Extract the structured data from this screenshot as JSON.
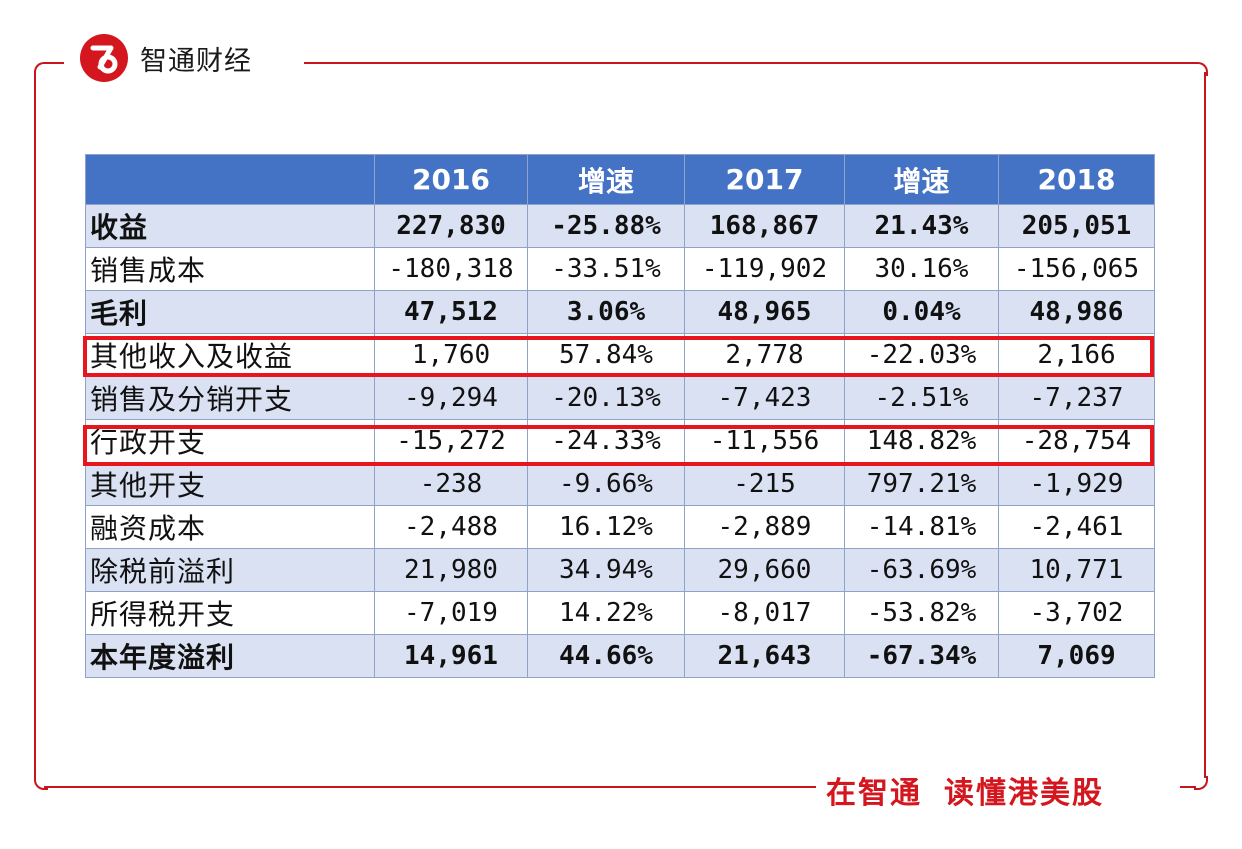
{
  "brand": {
    "name": "智通财经",
    "slogan_part1": "在智通",
    "slogan_part2": "读懂港美股"
  },
  "colors": {
    "brand_red": "#d4161e",
    "header_blue": "#4472c4",
    "band_blue": "#d9e1f2",
    "highlight_red": "#e8141e"
  },
  "chart_data": {
    "type": "table",
    "columns": [
      "",
      "2016",
      "增速",
      "2017",
      "增速",
      "2018"
    ],
    "rows": [
      {
        "label": "收益",
        "bold": true,
        "values": [
          "227,830",
          "-25.88%",
          "168,867",
          "21.43%",
          "205,051"
        ]
      },
      {
        "label": "销售成本",
        "bold": false,
        "values": [
          "-180,318",
          "-33.51%",
          "-119,902",
          "30.16%",
          "-156,065"
        ]
      },
      {
        "label": "毛利",
        "bold": true,
        "values": [
          "47,512",
          "3.06%",
          "48,965",
          "0.04%",
          "48,986"
        ]
      },
      {
        "label": "其他收入及收益",
        "bold": false,
        "highlighted": true,
        "values": [
          "1,760",
          "57.84%",
          "2,778",
          "-22.03%",
          "2,166"
        ]
      },
      {
        "label": "销售及分销开支",
        "bold": false,
        "values": [
          "-9,294",
          "-20.13%",
          "-7,423",
          "-2.51%",
          "-7,237"
        ]
      },
      {
        "label": "行政开支",
        "bold": false,
        "highlighted": true,
        "values": [
          "-15,272",
          "-24.33%",
          "-11,556",
          "148.82%",
          "-28,754"
        ]
      },
      {
        "label": "其他开支",
        "bold": false,
        "values": [
          "-238",
          "-9.66%",
          "-215",
          "797.21%",
          "-1,929"
        ]
      },
      {
        "label": "融资成本",
        "bold": false,
        "values": [
          "-2,488",
          "16.12%",
          "-2,889",
          "-14.81%",
          "-2,461"
        ]
      },
      {
        "label": "除税前溢利",
        "bold": false,
        "values": [
          "21,980",
          "34.94%",
          "29,660",
          "-63.69%",
          "10,771"
        ]
      },
      {
        "label": "所得税开支",
        "bold": false,
        "values": [
          "-7,019",
          "14.22%",
          "-8,017",
          "-53.82%",
          "-3,702"
        ]
      },
      {
        "label": "本年度溢利",
        "bold": true,
        "values": [
          "14,961",
          "44.66%",
          "21,643",
          "-67.34%",
          "7,069"
        ]
      }
    ]
  }
}
